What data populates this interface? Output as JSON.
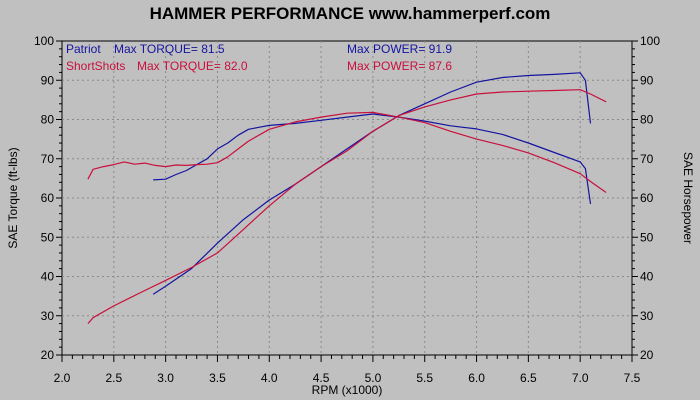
{
  "chart_data": {
    "type": "line",
    "title": "HAMMER PERFORMANCE www.hammerperf.com",
    "xlabel": "RPM (x1000)",
    "ylabel_left": "SAE Torque (ft-lbs)",
    "ylabel_right": "SAE Horsepower",
    "xlim": [
      2.0,
      7.5
    ],
    "ylim": [
      20,
      100
    ],
    "xticks": [
      "2.0",
      "2.5",
      "3.0",
      "3.5",
      "4.0",
      "4.5",
      "5.0",
      "5.5",
      "6.0",
      "6.5",
      "7.0",
      "7.5"
    ],
    "yticks": [
      "20",
      "30",
      "40",
      "50",
      "60",
      "70",
      "80",
      "90",
      "100"
    ],
    "grid": true,
    "colors": {
      "patriot": "#1414a0",
      "shortshots": "#c8103c",
      "background": "#c0c0c0",
      "grid": "#8a8a8a"
    },
    "legend": [
      {
        "series": "Patriot",
        "torque_label": "Max TORQUE= 81.5",
        "power_label": "Max POWER= 91.9",
        "color": "#1414a0"
      },
      {
        "series": "ShortShots",
        "torque_label": "Max TORQUE= 82.0",
        "power_label": "Max POWER= 87.6",
        "color": "#c8103c"
      }
    ],
    "series": [
      {
        "name": "Patriot",
        "metric": "torque",
        "color": "#1414a0",
        "x": [
          2.88,
          3.0,
          3.1,
          3.2,
          3.3,
          3.4,
          3.5,
          3.6,
          3.7,
          3.8,
          3.9,
          4.0,
          4.25,
          4.5,
          4.75,
          5.0,
          5.25,
          5.5,
          5.75,
          6.0,
          6.25,
          6.5,
          6.75,
          7.0,
          7.05,
          7.1
        ],
        "y": [
          64.6,
          64.8,
          66.0,
          67.0,
          68.5,
          70.0,
          72.5,
          74.0,
          76.0,
          77.5,
          78.0,
          78.5,
          79.0,
          79.8,
          80.6,
          81.4,
          80.6,
          79.6,
          78.4,
          77.6,
          76.2,
          74.0,
          71.6,
          69.2,
          67.5,
          58.5
        ]
      },
      {
        "name": "ShortShots",
        "metric": "torque",
        "color": "#c8103c",
        "x": [
          2.25,
          2.3,
          2.4,
          2.5,
          2.6,
          2.7,
          2.8,
          2.9,
          3.0,
          3.1,
          3.2,
          3.3,
          3.4,
          3.5,
          3.6,
          3.7,
          3.8,
          4.0,
          4.25,
          4.5,
          4.75,
          5.0,
          5.25,
          5.5,
          5.75,
          6.0,
          6.25,
          6.5,
          6.75,
          7.0,
          7.1,
          7.25
        ],
        "y": [
          64.8,
          67.3,
          68.0,
          68.5,
          69.2,
          68.6,
          68.9,
          68.3,
          68.0,
          68.4,
          68.3,
          68.5,
          68.6,
          69.0,
          70.5,
          72.5,
          74.5,
          77.5,
          79.4,
          80.6,
          81.6,
          81.8,
          80.6,
          79.2,
          77.0,
          75.0,
          73.4,
          71.5,
          69.0,
          66.2,
          64.2,
          61.4
        ]
      },
      {
        "name": "Patriot",
        "metric": "power",
        "color": "#1414a0",
        "x": [
          2.88,
          3.0,
          3.25,
          3.5,
          3.75,
          4.0,
          4.25,
          4.5,
          4.75,
          5.0,
          5.25,
          5.5,
          5.75,
          6.0,
          6.25,
          6.5,
          6.75,
          7.0,
          7.05,
          7.1
        ],
        "y": [
          35.5,
          37.5,
          42.0,
          48.5,
          54.5,
          59.5,
          63.5,
          68.0,
          72.5,
          77.0,
          81.0,
          84.0,
          87.0,
          89.5,
          90.7,
          91.2,
          91.5,
          91.9,
          90.0,
          79.0
        ]
      },
      {
        "name": "ShortShots",
        "metric": "power",
        "color": "#c8103c",
        "x": [
          2.25,
          2.3,
          2.5,
          2.75,
          3.0,
          3.25,
          3.5,
          3.75,
          4.0,
          4.25,
          4.5,
          4.75,
          5.0,
          5.25,
          5.5,
          5.75,
          6.0,
          6.25,
          6.5,
          6.75,
          7.0,
          7.1,
          7.25
        ],
        "y": [
          28.0,
          29.5,
          32.5,
          35.8,
          39.0,
          42.3,
          46.0,
          52.0,
          58.0,
          63.5,
          68.0,
          72.0,
          77.0,
          81.0,
          83.2,
          85.0,
          86.5,
          87.0,
          87.2,
          87.4,
          87.6,
          86.5,
          84.5
        ]
      }
    ]
  }
}
